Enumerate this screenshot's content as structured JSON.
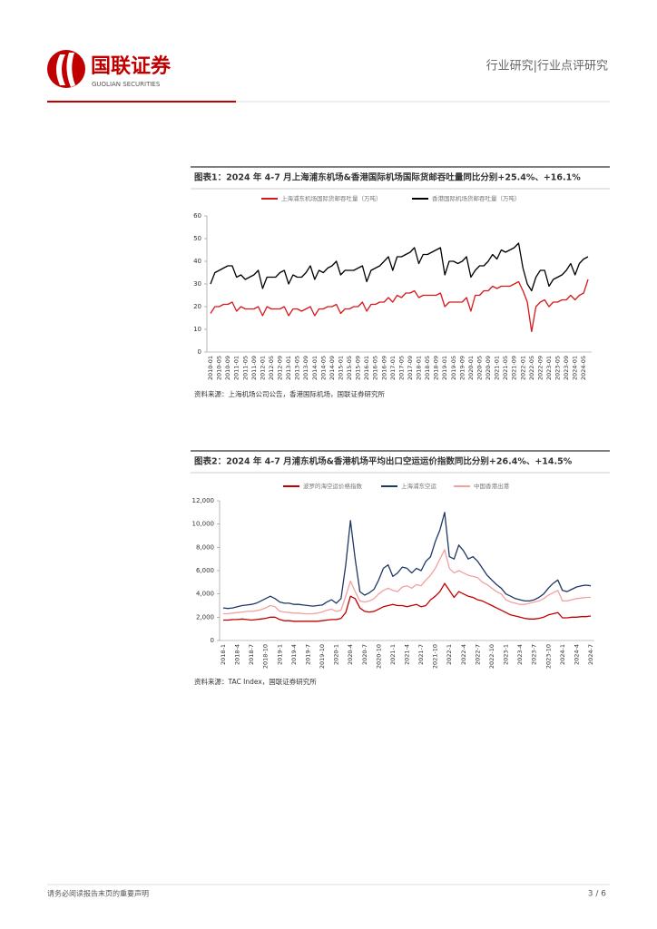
{
  "header": {
    "brand": "国联证券",
    "brand_en": "GUOLIAN SECURITIES",
    "section": "行业研究|行业点评研究"
  },
  "chart_data": [
    {
      "type": "line",
      "title": "图表1：2024 年 4-7 月上海浦东机场&香港国际机场国际货邮吞吐量同比分别+25.4%、+16.1%",
      "source": "资料来源：上海机场公司公告，香港国际机场，国联证券研究所",
      "categories": [
        "2010-01",
        null,
        "2010-05",
        null,
        "2010-09",
        null,
        "2011-01",
        null,
        "2011-05",
        null,
        "2011-09",
        null,
        "2012-01",
        null,
        "2012-05",
        null,
        "2012-09",
        null,
        "2013-01",
        null,
        "2013-05",
        null,
        "2013-09",
        null,
        "2014-01",
        null,
        "2014-05",
        null,
        "2014-09",
        null,
        "2015-01",
        null,
        "2015-05",
        null,
        "2015-09",
        null,
        "2016-01",
        null,
        "2016-05",
        null,
        "2016-09",
        null,
        "2017-01",
        null,
        "2017-05",
        null,
        "2017-09",
        null,
        "2018-01",
        null,
        "2018-05",
        null,
        "2018-09",
        null,
        "2019-01",
        null,
        "2019-05",
        null,
        "2019-09",
        null,
        "2020-01",
        null,
        "2020-05",
        null,
        "2020-09",
        null,
        "2021-01",
        null,
        "2021-05",
        null,
        "2021-09",
        null,
        "2022-01",
        null,
        "2022-05",
        null,
        "2022-09",
        null,
        "2023-01",
        null,
        "2023-05",
        null,
        "2023-09",
        null,
        "2024-01",
        null,
        "2024-05",
        null
      ],
      "series": [
        {
          "name": "上海浦东机场国际货邮吞吐量（万吨）",
          "color": "#d7191c",
          "values": [
            17,
            20,
            20,
            21,
            21,
            22,
            18,
            20,
            19,
            19,
            19,
            20,
            16,
            20,
            19,
            19,
            19,
            20,
            16,
            19,
            19,
            18,
            19,
            20,
            16,
            19,
            19,
            20,
            20,
            21,
            17,
            19,
            19,
            20,
            20,
            22,
            18,
            21,
            21,
            22,
            22,
            24,
            22,
            25,
            24,
            26,
            26,
            27,
            24,
            25,
            25,
            25,
            25,
            26,
            20,
            22,
            22,
            22,
            22,
            24,
            18,
            25,
            25,
            27,
            27,
            29,
            28,
            29,
            29,
            29,
            30,
            31,
            27,
            22,
            9,
            20,
            22,
            23,
            20,
            22,
            22,
            23,
            23,
            25,
            23,
            25,
            26,
            32
          ]
        },
        {
          "name": "香港国际机场货邮吞吐量（万吨）",
          "color": "#000000",
          "values": [
            30,
            35,
            36,
            37,
            38,
            38,
            33,
            34,
            32,
            33,
            34,
            36,
            28,
            33,
            33,
            33,
            35,
            36,
            30,
            34,
            33,
            33,
            35,
            38,
            32,
            36,
            35,
            37,
            38,
            40,
            34,
            36,
            36,
            36,
            37,
            38,
            31,
            36,
            37,
            38,
            40,
            42,
            36,
            42,
            42,
            43,
            44,
            46,
            39,
            43,
            43,
            44,
            45,
            46,
            34,
            40,
            40,
            39,
            40,
            42,
            33,
            36,
            38,
            38,
            40,
            43,
            41,
            45,
            44,
            45,
            46,
            48,
            37,
            30,
            27,
            33,
            36,
            36,
            29,
            32,
            33,
            34,
            36,
            39,
            34,
            39,
            41,
            42
          ]
        }
      ],
      "ylim": [
        0,
        60
      ],
      "yticks": [
        0,
        10,
        20,
        30,
        40,
        50,
        60
      ]
    },
    {
      "type": "line",
      "title": "图表2：2024 年 4-7 月浦东机场&香港机场平均出口空运运价指数同比分别+26.4%、+14.5%",
      "source": "资料来源：TAC Index，国联证券研究所",
      "categories": [
        "2018-1",
        null,
        null,
        "2018-4",
        null,
        null,
        "2018-7",
        null,
        null,
        "2018-10",
        null,
        null,
        "2019-1",
        null,
        null,
        "2019-4",
        null,
        null,
        "2019-7",
        null,
        null,
        "2019-10",
        null,
        null,
        "2020-1",
        null,
        null,
        "2020-4",
        null,
        null,
        "2020-7",
        null,
        null,
        "2020-10",
        null,
        null,
        "2021-1",
        null,
        null,
        "2021-4",
        null,
        null,
        "2021-7",
        null,
        null,
        "2021-10",
        null,
        null,
        "2022-1",
        null,
        null,
        "2022-4",
        null,
        null,
        "2022-7",
        null,
        null,
        "2022-10",
        null,
        null,
        "2023-1",
        null,
        null,
        "2023-4",
        null,
        null,
        "2023-7",
        null,
        null,
        "2023-10",
        null,
        null,
        "2024-1",
        null,
        null,
        "2024-4",
        null,
        null,
        "2024-7"
      ],
      "series": [
        {
          "name": "波罗的海空运价格指数",
          "color": "#c00000",
          "values": [
            1750,
            1750,
            1800,
            1800,
            1850,
            1800,
            1750,
            1800,
            1850,
            1900,
            2000,
            2000,
            1800,
            1700,
            1700,
            1650,
            1650,
            1650,
            1650,
            1650,
            1650,
            1700,
            1750,
            1800,
            1800,
            1900,
            2400,
            3800,
            3600,
            2800,
            2500,
            2450,
            2500,
            2700,
            2900,
            3000,
            3100,
            3000,
            3000,
            2900,
            3000,
            3100,
            2900,
            3000,
            3500,
            3800,
            4200,
            4900,
            4300,
            3700,
            4200,
            4000,
            3800,
            3700,
            3500,
            3400,
            3200,
            3000,
            2800,
            2600,
            2400,
            2200,
            2100,
            2000,
            1900,
            1850,
            1850,
            1900,
            2000,
            2200,
            2300,
            2400,
            1950,
            1950,
            2000,
            2000,
            2050,
            2050,
            2100
          ]
        },
        {
          "name": "上海浦东空运",
          "color": "#1f3864",
          "values": [
            2800,
            2750,
            2800,
            2900,
            3000,
            3050,
            3100,
            3200,
            3400,
            3600,
            3800,
            3600,
            3300,
            3200,
            3200,
            3100,
            3100,
            3050,
            3000,
            2950,
            3000,
            3050,
            3300,
            3500,
            3200,
            3600,
            6500,
            10300,
            7000,
            4200,
            3900,
            4100,
            4400,
            5200,
            6200,
            6500,
            5500,
            5800,
            6300,
            6200,
            5800,
            6200,
            6000,
            6800,
            7200,
            8500,
            9500,
            11000,
            7200,
            7000,
            8200,
            7700,
            7000,
            7200,
            6800,
            6200,
            5600,
            5200,
            4800,
            4500,
            4000,
            3800,
            3600,
            3500,
            3400,
            3400,
            3500,
            3700,
            4000,
            4500,
            4900,
            5200,
            4300,
            4200,
            4400,
            4600,
            4700,
            4750,
            4700
          ]
        },
        {
          "name": "中国香港出港",
          "color": "#f4a0a0",
          "values": [
            2300,
            2300,
            2350,
            2400,
            2450,
            2500,
            2500,
            2550,
            2650,
            2800,
            3000,
            2900,
            2500,
            2450,
            2400,
            2350,
            2350,
            2300,
            2300,
            2300,
            2350,
            2450,
            2600,
            2700,
            2500,
            2600,
            3800,
            5100,
            4200,
            3400,
            3300,
            3400,
            3600,
            4000,
            4300,
            4500,
            4300,
            4200,
            4600,
            4700,
            4500,
            4800,
            4700,
            5200,
            5600,
            6200,
            7000,
            7800,
            6200,
            5800,
            6000,
            5800,
            5600,
            5500,
            5400,
            5000,
            4800,
            4500,
            4200,
            4000,
            3500,
            3300,
            3200,
            3100,
            3100,
            3200,
            3300,
            3400,
            3600,
            3900,
            4100,
            4300,
            3400,
            3400,
            3500,
            3600,
            3650,
            3700,
            3700
          ]
        }
      ],
      "ylim": [
        0,
        12000
      ],
      "yticks": [
        0,
        {
          "value": 2000,
          "label": "2,000"
        },
        {
          "value": 4000,
          "label": "4,000"
        },
        {
          "value": 6000,
          "label": "6,000"
        },
        {
          "value": 8000,
          "label": "8,000"
        },
        {
          "value": 10000,
          "label": "10,000"
        },
        {
          "value": 12000,
          "label": "12,000"
        }
      ]
    }
  ],
  "footer": {
    "disclaimer": "请务必阅读报告末页的重要声明",
    "page": "3 / 6"
  }
}
